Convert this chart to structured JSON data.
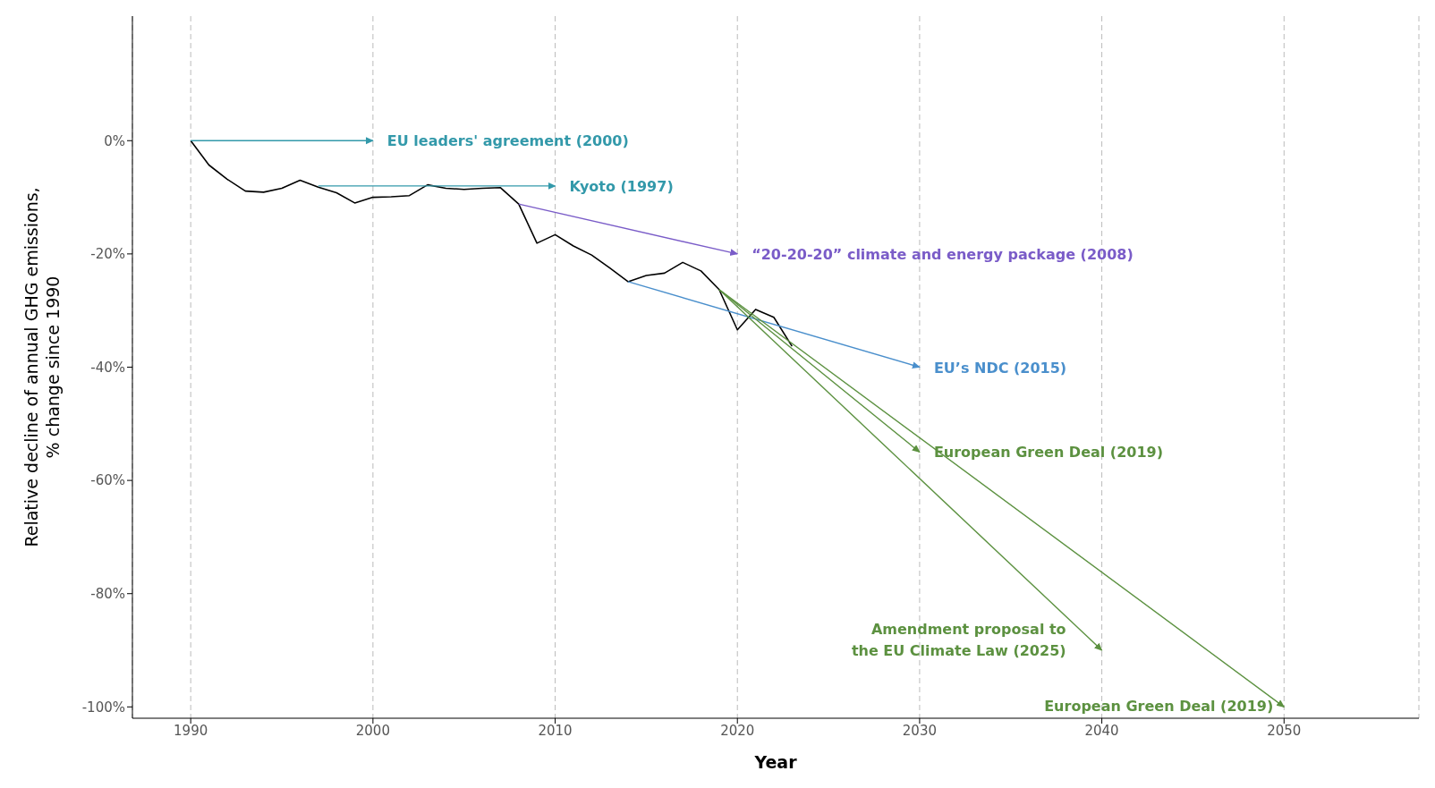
{
  "chart_data": {
    "type": "line",
    "xlabel": "Year",
    "ylabel": "Relative decline of annual GHG emissions,\n% change since 1990",
    "xlim": [
      1986.8,
      2057.4
    ],
    "xticks": [
      1990,
      2000,
      2010,
      2020,
      2030,
      2040,
      2050
    ],
    "ylim": [
      -102,
      22
    ],
    "yticks": [
      {
        "value": 0,
        "label": "0%"
      },
      {
        "value": -20,
        "label": "-20%"
      },
      {
        "value": -40,
        "label": "-40%"
      },
      {
        "value": -60,
        "label": "-60%"
      },
      {
        "value": -80,
        "label": "-80%"
      },
      {
        "value": -100,
        "label": "-100%"
      }
    ],
    "grid": "x",
    "legend": false,
    "line_style": "solid",
    "series": [
      {
        "color": "#000000",
        "x": [
          1990,
          1991,
          1992,
          1993,
          1994,
          1995,
          1996,
          1997,
          1998,
          1999,
          2000,
          2001,
          2002,
          2003,
          2004,
          2005,
          2006,
          2007,
          2008,
          2009,
          2010,
          2011,
          2012,
          2013,
          2014,
          2015,
          2016,
          2017,
          2018,
          2019,
          2020,
          2021,
          2022,
          2023
        ],
        "values": [
          0,
          -4.3,
          -6.8,
          -8.9,
          -9.1,
          -8.4,
          -7.0,
          -8.2,
          -9.2,
          -11.0,
          -10.0,
          -9.9,
          -9.7,
          -7.8,
          -8.4,
          -8.6,
          -8.4,
          -8.3,
          -11.2,
          -18.1,
          -16.6,
          -18.6,
          -20.2,
          -22.5,
          -24.9,
          -23.8,
          -23.4,
          -21.5,
          -23.0,
          -26.3,
          -33.4,
          -29.8,
          -31.2,
          -36.3
        ]
      },
      {
        "name": "EU leaders' agreement (2000)",
        "color": "#3399aa",
        "x": [
          1990,
          2000
        ],
        "values": [
          0,
          0
        ]
      },
      {
        "name": "Kyoto (1997)",
        "color": "#3399aa",
        "x": [
          1997,
          2010
        ],
        "values": [
          -8,
          -8
        ]
      },
      {
        "name": "“20-20-20” climate and energy package (2008)",
        "color": "#7a5cc8",
        "x": [
          2008,
          2020
        ],
        "values": [
          -11.2,
          -20
        ]
      },
      {
        "name": "EU’s NDC (2015)",
        "color": "#4a8fcc",
        "x": [
          2014,
          2030
        ],
        "values": [
          -24.9,
          -40
        ]
      },
      {
        "name": "European Green Deal (2019)",
        "color": "#5c9140",
        "x": [
          2019,
          2030
        ],
        "values": [
          -26.3,
          -55
        ]
      },
      {
        "name": "Amendment proposal to the EU Climate Law (2025)",
        "color": "#5c9140",
        "x": [
          2019,
          2040
        ],
        "values": [
          -26.3,
          -90
        ]
      },
      {
        "name": "European Green Deal (2019)",
        "color": "#5c9140",
        "x": [
          2019,
          2050
        ],
        "values": [
          -26.3,
          -100
        ]
      }
    ]
  }
}
